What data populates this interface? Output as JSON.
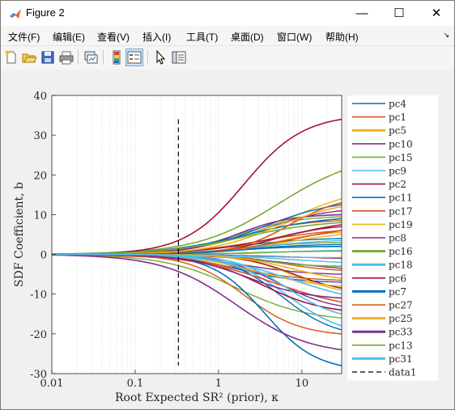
{
  "window": {
    "title": "Figure 2",
    "minimize_glyph": "—",
    "maximize_glyph": "☐",
    "close_glyph": "✕"
  },
  "menu": [
    {
      "label": "文件(F)"
    },
    {
      "label": "编辑(E)"
    },
    {
      "label": "查看(V)"
    },
    {
      "label": "插入(I)"
    },
    {
      "label": "工具(T)"
    },
    {
      "label": "桌面(D)"
    },
    {
      "label": "窗口(W)"
    },
    {
      "label": "帮助(H)"
    }
  ],
  "toolbar": [
    "new-figure-icon",
    "open-file-icon",
    "save-icon",
    "print-icon",
    "link-plot-icon",
    "colorbar-icon",
    "legend-icon",
    "pointer-icon",
    "property-inspector-icon"
  ],
  "chart_data": {
    "type": "line",
    "xlabel": "Root Expected SR² (prior), κ",
    "ylabel": "SDF Coefficient, b",
    "xscale": "log",
    "xlim": [
      0.01,
      30
    ],
    "ylim": [
      -30,
      40
    ],
    "xticks": [
      "0.01",
      "0.1",
      "1",
      "10"
    ],
    "yticks": [
      "-30",
      "-20",
      "-10",
      "0",
      "10",
      "20",
      "30",
      "40"
    ],
    "grid": "vertical dotted",
    "legend_position": "right",
    "vline": {
      "name": "data1",
      "x": 0.33,
      "y_range": [
        -28,
        34
      ],
      "style": "dashed"
    },
    "series": [
      {
        "name": "pc4",
        "color": "#0072bd",
        "final": -28
      },
      {
        "name": "pc1",
        "color": "#d95319",
        "final": 6
      },
      {
        "name": "pc5",
        "color": "#edb120",
        "final": -8
      },
      {
        "name": "pc10",
        "color": "#7e2f8e",
        "final": 10
      },
      {
        "name": "pc15",
        "color": "#77ac30",
        "final": 21
      },
      {
        "name": "pc9",
        "color": "#4dbeee",
        "final": -18
      },
      {
        "name": "pc2",
        "color": "#a2142f",
        "final": 34
      },
      {
        "name": "pc11",
        "color": "#0072bd",
        "final": 9
      },
      {
        "name": "pc17",
        "color": "#d95319",
        "final": 13
      },
      {
        "name": "pc19",
        "color": "#edb120",
        "final": 12
      },
      {
        "name": "pc8",
        "color": "#7e2f8e",
        "final": -24
      },
      {
        "name": "pc16",
        "color": "#77ac30",
        "final": -3
      },
      {
        "name": "pc18",
        "color": "#4dbeee",
        "final": -10
      },
      {
        "name": "pc6",
        "color": "#a2142f",
        "final": -14
      },
      {
        "name": "pc7",
        "color": "#0072bd",
        "final": 2
      },
      {
        "name": "pc27",
        "color": "#d95319",
        "final": -12
      },
      {
        "name": "pc25",
        "color": "#edb120",
        "final": -6
      },
      {
        "name": "pc33",
        "color": "#7e2f8e",
        "final": -11
      },
      {
        "name": "pc13",
        "color": "#77ac30",
        "final": 8
      },
      {
        "name": "pc31",
        "color": "#4dbeee",
        "final": -15
      }
    ],
    "extra_curves_final": [
      4,
      -4,
      5,
      -5,
      3,
      -2,
      7,
      -7,
      6,
      -9,
      11,
      -16,
      1,
      -1,
      2.5,
      -20,
      14,
      -13,
      9.5,
      3.5,
      -8.5,
      12.5,
      -6.5,
      5.5,
      -3.5,
      0.8,
      -0.8,
      7.5,
      -19,
      8.5
    ]
  }
}
